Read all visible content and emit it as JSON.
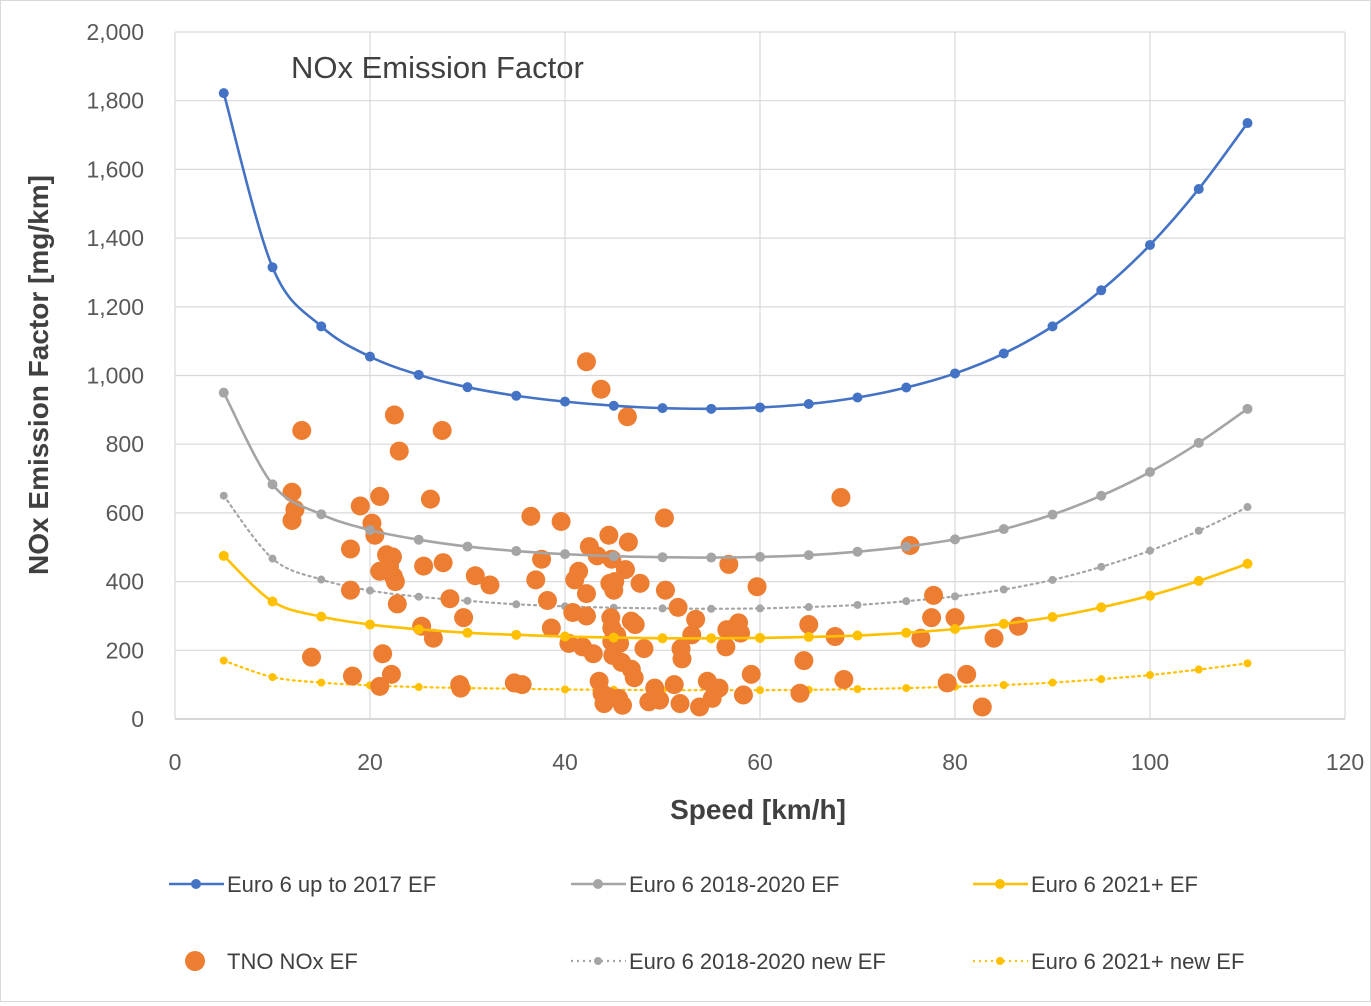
{
  "chart_data": {
    "type": "scatter",
    "title": "NOx Emission Factor",
    "xlabel": "Speed [km/h]",
    "ylabel": "NOx Emission Factor  [mg/km]",
    "xlim": [
      0,
      120
    ],
    "ylim": [
      0,
      2000
    ],
    "x_ticks": [
      {
        "value": 0,
        "label": "0"
      },
      {
        "value": 20,
        "label": "20"
      },
      {
        "value": 40,
        "label": "40"
      },
      {
        "value": 60,
        "label": "60"
      },
      {
        "value": 80,
        "label": "80"
      },
      {
        "value": 100,
        "label": "100"
      },
      {
        "value": 120,
        "label": "120"
      }
    ],
    "y_ticks": [
      {
        "value": 0,
        "label": "0"
      },
      {
        "value": 200,
        "label": "200"
      },
      {
        "value": 400,
        "label": "400"
      },
      {
        "value": 600,
        "label": "600"
      },
      {
        "value": 800,
        "label": "800"
      },
      {
        "value": 1000,
        "label": "1,000"
      },
      {
        "value": 1200,
        "label": "1,200"
      },
      {
        "value": 1400,
        "label": "1,400"
      },
      {
        "value": 1600,
        "label": "1,600"
      },
      {
        "value": 1800,
        "label": "1,800"
      },
      {
        "value": 2000,
        "label": "2,000"
      }
    ],
    "grid": true,
    "legend_position": "bottom",
    "series": [
      {
        "name": "Euro 6 up to 2017 EF",
        "kind": "line",
        "style": "solid",
        "color": "#4472C4",
        "x": [
          5,
          10,
          15,
          20,
          25,
          30,
          35,
          40,
          45,
          50,
          55,
          60,
          65,
          70,
          75,
          80,
          85,
          90,
          95,
          100,
          105,
          110
        ],
        "y": [
          1822,
          1315,
          1143,
          1055,
          1002,
          966,
          941,
          924,
          912,
          905,
          903,
          907,
          917,
          936,
          965,
          1006,
          1064,
          1143,
          1248,
          1380,
          1543,
          1735
        ]
      },
      {
        "name": "Euro 6 2018-2020 EF",
        "kind": "line",
        "style": "solid",
        "color": "#A5A5A5",
        "x": [
          5,
          10,
          15,
          20,
          25,
          30,
          35,
          40,
          45,
          50,
          55,
          60,
          65,
          70,
          75,
          80,
          85,
          90,
          95,
          100,
          105,
          110
        ],
        "y": [
          950,
          683,
          596,
          550,
          522,
          502,
          489,
          480,
          474,
          471,
          470,
          472,
          477,
          487,
          502,
          523,
          553,
          595,
          650,
          719,
          804,
          903
        ]
      },
      {
        "name": "Euro 6 2021+ EF",
        "kind": "line",
        "style": "solid",
        "color": "#FFC000",
        "x": [
          5,
          10,
          15,
          20,
          25,
          30,
          35,
          40,
          45,
          50,
          55,
          60,
          65,
          70,
          75,
          80,
          85,
          90,
          95,
          100,
          105,
          110
        ],
        "y": [
          475,
          342,
          298,
          275,
          261,
          251,
          245,
          240,
          237,
          235,
          235,
          236,
          239,
          243,
          251,
          262,
          277,
          297,
          325,
          359,
          402,
          452
        ]
      },
      {
        "name": "TNO NOx EF",
        "kind": "scatter",
        "color": "#ED7D31",
        "points": [
          [
            12,
            660
          ],
          [
            12.3,
            610
          ],
          [
            12,
            578
          ],
          [
            13,
            840
          ],
          [
            14,
            180
          ],
          [
            18,
            495
          ],
          [
            18,
            375
          ],
          [
            18.2,
            125
          ],
          [
            19,
            620
          ],
          [
            20.2,
            570
          ],
          [
            20.5,
            535
          ],
          [
            21,
            648
          ],
          [
            21,
            430
          ],
          [
            21.3,
            190
          ],
          [
            21,
            95
          ],
          [
            21.7,
            478
          ],
          [
            22,
            445
          ],
          [
            22.3,
            472
          ],
          [
            22.4,
            415
          ],
          [
            22.6,
            400
          ],
          [
            22.8,
            335
          ],
          [
            22.2,
            130
          ],
          [
            22.5,
            885
          ],
          [
            23,
            780
          ],
          [
            25.3,
            270
          ],
          [
            25.5,
            445
          ],
          [
            26.2,
            640
          ],
          [
            26.5,
            235
          ],
          [
            27.4,
            840
          ],
          [
            27.5,
            455
          ],
          [
            28.2,
            350
          ],
          [
            29.2,
            100
          ],
          [
            29.3,
            90
          ],
          [
            29.6,
            295
          ],
          [
            30.8,
            417
          ],
          [
            32.3,
            390
          ],
          [
            34.8,
            105
          ],
          [
            35.6,
            100
          ],
          [
            36.5,
            590
          ],
          [
            37,
            405
          ],
          [
            37.6,
            465
          ],
          [
            38.2,
            345
          ],
          [
            38.6,
            265
          ],
          [
            39.6,
            575
          ],
          [
            40.4,
            220
          ],
          [
            40.8,
            310
          ],
          [
            41,
            405
          ],
          [
            41.4,
            430
          ],
          [
            41.8,
            210
          ],
          [
            42.2,
            1040
          ],
          [
            42.2,
            365
          ],
          [
            42.2,
            300
          ],
          [
            42.5,
            502
          ],
          [
            42.9,
            190
          ],
          [
            43.3,
            475
          ],
          [
            43.5,
            110
          ],
          [
            43.8,
            75
          ],
          [
            43.7,
            960
          ],
          [
            44,
            45
          ],
          [
            44.4,
            65
          ],
          [
            44.5,
            535
          ],
          [
            44.6,
            395
          ],
          [
            44.8,
            465
          ],
          [
            44.7,
            295
          ],
          [
            44.8,
            265
          ],
          [
            44.8,
            225
          ],
          [
            44.9,
            185
          ],
          [
            45,
            375
          ],
          [
            45.1,
            400
          ],
          [
            45.3,
            245
          ],
          [
            45.6,
            220
          ],
          [
            45.8,
            165
          ],
          [
            45.5,
            60
          ],
          [
            45.9,
            40
          ],
          [
            46.2,
            435
          ],
          [
            46.4,
            880
          ],
          [
            46.5,
            515
          ],
          [
            46.8,
            285
          ],
          [
            46.8,
            145
          ],
          [
            47.1,
            120
          ],
          [
            47.2,
            275
          ],
          [
            47.7,
            395
          ],
          [
            48.1,
            205
          ],
          [
            48.6,
            50
          ],
          [
            49.2,
            90
          ],
          [
            49.7,
            55
          ],
          [
            50.2,
            585
          ],
          [
            50.3,
            375
          ],
          [
            51.2,
            100
          ],
          [
            51.6,
            325
          ],
          [
            51.8,
            45
          ],
          [
            51.9,
            205
          ],
          [
            52,
            175
          ],
          [
            53,
            245
          ],
          [
            53.4,
            290
          ],
          [
            53.8,
            35
          ],
          [
            54.6,
            110
          ],
          [
            55.1,
            60
          ],
          [
            55.8,
            90
          ],
          [
            56.5,
            210
          ],
          [
            56.6,
            260
          ],
          [
            56.8,
            450
          ],
          [
            57.4,
            265
          ],
          [
            57.8,
            280
          ],
          [
            58,
            250
          ],
          [
            58.3,
            70
          ],
          [
            59.1,
            130
          ],
          [
            59.7,
            385
          ],
          [
            64.1,
            75
          ],
          [
            64.5,
            170
          ],
          [
            65,
            275
          ],
          [
            67.7,
            240
          ],
          [
            68.3,
            645
          ],
          [
            68.6,
            115
          ],
          [
            75.4,
            505
          ],
          [
            76.5,
            235
          ],
          [
            77.6,
            295
          ],
          [
            77.8,
            360
          ],
          [
            79.2,
            105
          ],
          [
            80,
            295
          ],
          [
            81.2,
            130
          ],
          [
            82.8,
            35
          ],
          [
            84,
            235
          ],
          [
            86.5,
            270
          ]
        ]
      },
      {
        "name": "Euro 6 2018-2020 new EF",
        "kind": "line",
        "style": "dotted",
        "color": "#A5A5A5",
        "x": [
          5,
          10,
          15,
          20,
          25,
          30,
          35,
          40,
          45,
          50,
          55,
          60,
          65,
          70,
          75,
          80,
          85,
          90,
          95,
          100,
          105,
          110
        ],
        "y": [
          650,
          467,
          406,
          374,
          356,
          344,
          334,
          328,
          324,
          322,
          321,
          322,
          326,
          332,
          343,
          357,
          377,
          405,
          443,
          490,
          548,
          617
        ]
      },
      {
        "name": "Euro 6 2021+ new EF",
        "kind": "line",
        "style": "dotted",
        "color": "#FFC000",
        "x": [
          5,
          10,
          15,
          20,
          25,
          30,
          35,
          40,
          45,
          50,
          55,
          60,
          65,
          70,
          75,
          80,
          85,
          90,
          95,
          100,
          105,
          110
        ],
        "y": [
          170,
          122,
          106,
          98,
          93,
          90,
          88,
          86,
          85,
          84,
          84,
          84,
          85,
          87,
          90,
          94,
          99,
          106,
          116,
          128,
          144,
          162
        ]
      }
    ]
  }
}
